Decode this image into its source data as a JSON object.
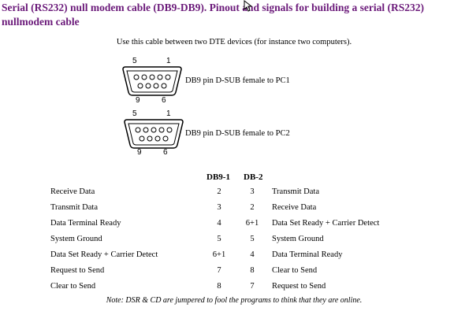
{
  "title": "Serial (RS232) null modem cable (DB9-DB9). Pinout and signals for building a serial (RS232) nullmodem cable",
  "intro": "Use this cable between two DTE devices (for instance two computers).",
  "connectors": [
    {
      "pin_top_left": "5",
      "pin_top_right": "1",
      "pin_bottom_left": "9",
      "pin_bottom_right": "6",
      "label": "DB9 pin D-SUB female to PC1"
    },
    {
      "pin_top_left": "5",
      "pin_top_right": "1",
      "pin_bottom_left": "9",
      "pin_bottom_right": "6",
      "label": "DB9 pin D-SUB female to PC2"
    }
  ],
  "table": {
    "headers": {
      "left": "",
      "pin1": "DB9-1",
      "pin2": "DB-2",
      "right": ""
    },
    "rows": [
      {
        "left": "Receive Data",
        "pin1": "2",
        "pin2": "3",
        "right": "Transmit Data"
      },
      {
        "left": "Transmit Data",
        "pin1": "3",
        "pin2": "2",
        "right": "Receive Data"
      },
      {
        "left": "Data Terminal Ready",
        "pin1": "4",
        "pin2": "6+1",
        "right": "Data Set Ready + Carrier Detect"
      },
      {
        "left": "System Ground",
        "pin1": "5",
        "pin2": "5",
        "right": "System Ground"
      },
      {
        "left": "Data Set Ready + Carrier Detect",
        "pin1": "6+1",
        "pin2": "4",
        "right": "Data Terminal Ready"
      },
      {
        "left": "Request to Send",
        "pin1": "7",
        "pin2": "8",
        "right": "Clear to Send"
      },
      {
        "left": "Clear to Send",
        "pin1": "8",
        "pin2": "7",
        "right": "Request to Send"
      }
    ]
  },
  "note": "Note: DSR & CD are jumpered to fool the programs to think that they are online.",
  "colors": {
    "title": "#6b1a7a"
  }
}
